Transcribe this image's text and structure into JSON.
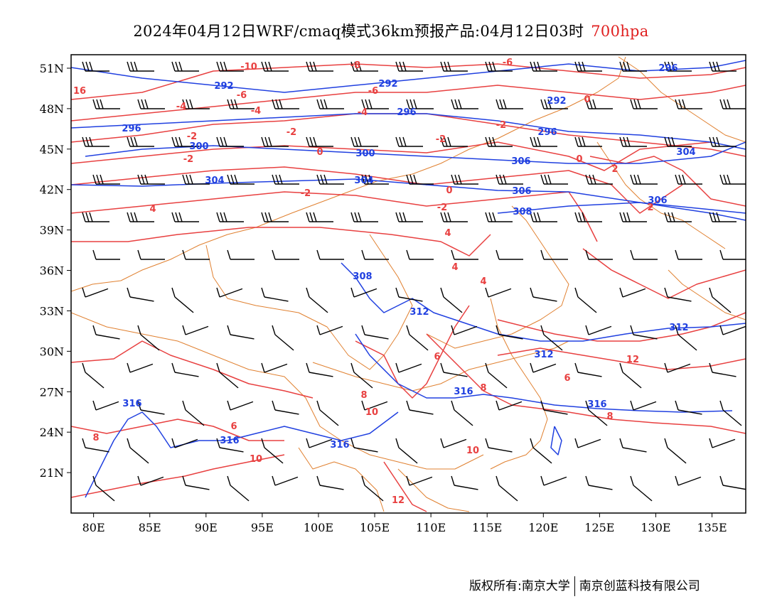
{
  "title": {
    "main": "2024年04月12日WRF/cmaq模式36km预报产品:04月12日03时",
    "level": "700hpa"
  },
  "axes": {
    "lon_labels": [
      "80E",
      "85E",
      "90E",
      "95E",
      "100E",
      "105E",
      "110E",
      "115E",
      "120E",
      "125E",
      "130E",
      "135E"
    ],
    "lat_labels": [
      "51N",
      "48N",
      "45N",
      "42N",
      "39N",
      "36N",
      "33N",
      "30N",
      "27N",
      "24N",
      "21N"
    ],
    "lon_range": [
      78,
      138
    ],
    "lat_range": [
      18,
      52
    ]
  },
  "chart_data": {
    "type": "contour-map",
    "fields": {
      "temperature_contours": {
        "color": "#e84040",
        "labels": [
          "16",
          "-10",
          "-8",
          "-6",
          "-6",
          "-6",
          "-4",
          "-4",
          "-4",
          "-2",
          "-2",
          "-2",
          "-2",
          "-2",
          "-2",
          "-2",
          "0",
          "0",
          "0",
          "0",
          "2",
          "4",
          "4",
          "4",
          "4",
          "6",
          "6",
          "6",
          "8",
          "8",
          "8",
          "8",
          "10",
          "10",
          "10",
          "12",
          "12",
          "2"
        ]
      },
      "theta_contours": {
        "color": "#2040e0",
        "labels": [
          "296",
          "292",
          "292",
          "296",
          "292",
          "296",
          "296",
          "300",
          "300",
          "304",
          "304",
          "304",
          "306",
          "306",
          "306",
          "308",
          "308",
          "312",
          "312",
          "312",
          "316",
          "316",
          "316",
          "316",
          "316"
        ]
      },
      "wind_barbs": {
        "color": "#000000"
      },
      "boundaries": {
        "color": "#e08030"
      }
    }
  },
  "footer": {
    "left": "版权所有:南京大学",
    "right": "南京创蓝科技有限公司"
  }
}
